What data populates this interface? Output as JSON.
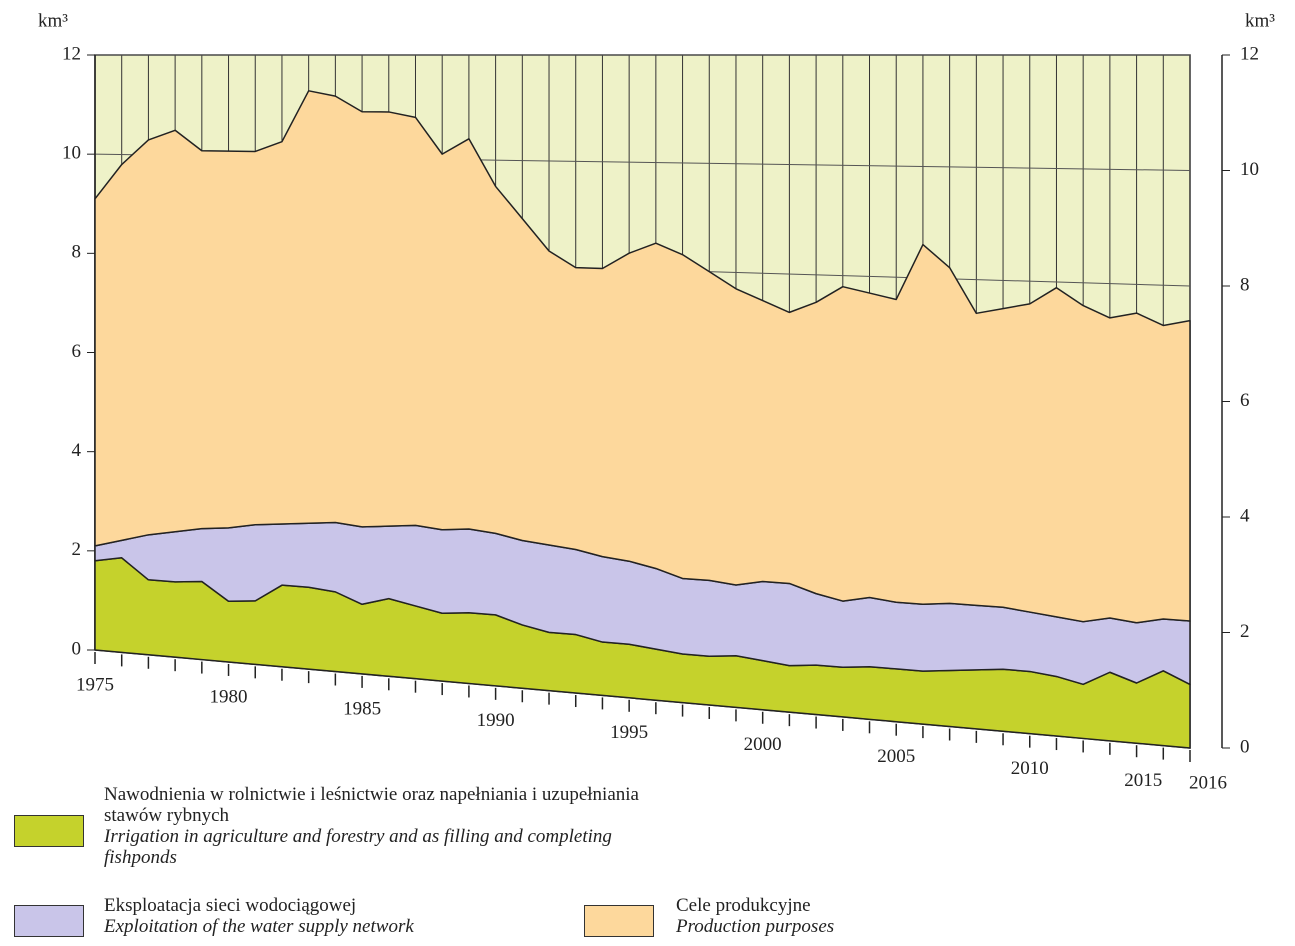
{
  "chart_data": {
    "type": "area",
    "y_unit": "km³",
    "y2_unit": "km³",
    "x": [
      1975,
      1976,
      1977,
      1978,
      1979,
      1980,
      1981,
      1982,
      1983,
      1984,
      1985,
      1986,
      1987,
      1988,
      1989,
      1990,
      1991,
      1992,
      1993,
      1994,
      1995,
      1996,
      1997,
      1998,
      1999,
      2000,
      2001,
      2002,
      2003,
      2004,
      2005,
      2006,
      2007,
      2008,
      2009,
      2010,
      2011,
      2012,
      2013,
      2014,
      2015,
      2016
    ],
    "xlim": [
      1975,
      2016
    ],
    "xticks": [
      1975,
      1980,
      1985,
      1990,
      1995,
      2000,
      2005,
      2010,
      2015,
      2016
    ],
    "ylim": [
      0,
      12
    ],
    "yticks": [
      0,
      2,
      4,
      6,
      8,
      10,
      12
    ],
    "y2lim": [
      0,
      12
    ],
    "y2ticks": [
      0,
      2,
      4,
      6,
      8,
      10,
      12
    ],
    "stacked": true,
    "background": "#eef2c8",
    "series": [
      {
        "name": "Nawodnienia w rolnictwie i leśnictwie oraz napełniania i uzupełniania stawów rybnych",
        "name_en": "Irrigation in agriculture and forestry and as filling and completing fishponds",
        "color": "#c5d22c",
        "values": [
          1.8,
          1.9,
          1.5,
          1.5,
          1.55,
          1.2,
          1.25,
          1.6,
          1.6,
          1.55,
          1.35,
          1.5,
          1.4,
          1.3,
          1.35,
          1.35,
          1.2,
          1.1,
          1.1,
          1.0,
          1.0,
          0.95,
          0.9,
          0.9,
          0.95,
          0.9,
          0.85,
          0.9,
          0.9,
          0.95,
          0.95,
          0.95,
          1.0,
          1.05,
          1.1,
          1.1,
          1.05,
          0.95,
          1.2,
          1.05,
          1.3,
          1.1
        ]
      },
      {
        "name": "Eksploatacja sieci wodociągowej",
        "name_en": "Exploitation of the water supply network",
        "color": "#c9c5e9",
        "values": [
          0.3,
          0.35,
          0.9,
          1.0,
          1.05,
          1.45,
          1.5,
          1.2,
          1.25,
          1.35,
          1.5,
          1.4,
          1.55,
          1.6,
          1.6,
          1.55,
          1.6,
          1.65,
          1.6,
          1.6,
          1.55,
          1.5,
          1.4,
          1.4,
          1.3,
          1.45,
          1.5,
          1.3,
          1.2,
          1.25,
          1.2,
          1.2,
          1.2,
          1.15,
          1.1,
          1.05,
          1.05,
          1.1,
          0.95,
          1.05,
          0.9,
          1.1
        ]
      },
      {
        "name": "Cele produkcyjne",
        "name_en": "Production purposes",
        "color": "#fdd89c",
        "values": [
          7.0,
          7.55,
          7.9,
          8.0,
          7.5,
          7.45,
          7.35,
          7.5,
          8.45,
          8.3,
          8.05,
          8.0,
          7.85,
          7.2,
          7.45,
          6.6,
          6.1,
          5.55,
          5.3,
          5.4,
          5.75,
          6.05,
          6.0,
          5.7,
          5.45,
          5.15,
          4.95,
          5.3,
          5.7,
          5.5,
          5.45,
          6.45,
          6.0,
          5.2,
          5.3,
          5.45,
          5.8,
          5.55,
          5.25,
          5.4,
          5.1,
          5.2
        ]
      }
    ]
  }
}
